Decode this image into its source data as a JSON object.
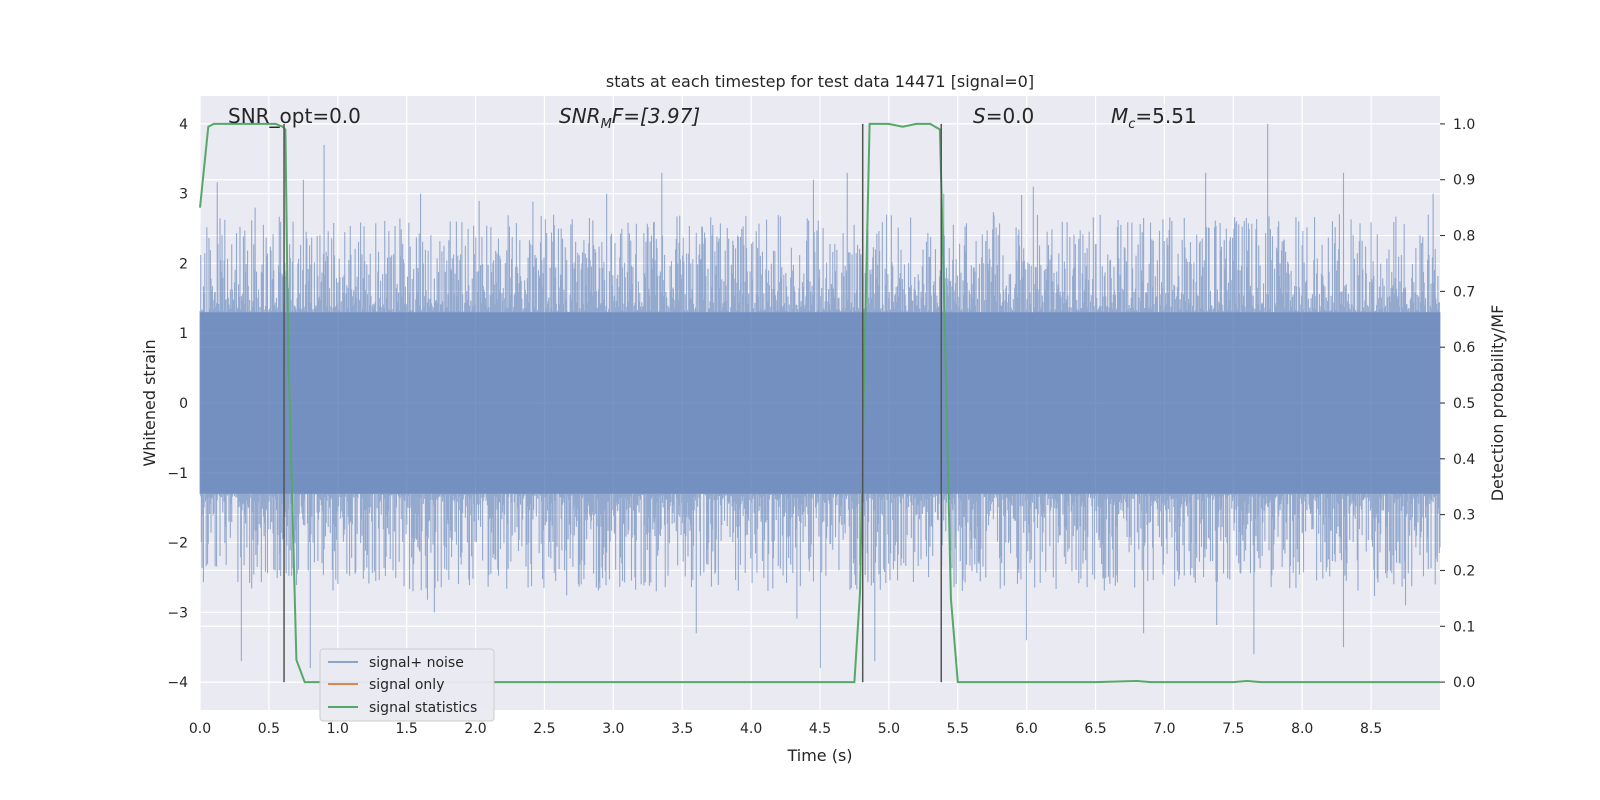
{
  "chart_data": {
    "type": "line",
    "title": "stats at each timestep for test data 14471 [signal=0]",
    "xlabel": "Time (s)",
    "ylabel_left": "Whitened strain",
    "ylabel_right": "Detection probability/MF",
    "xlim": [
      0.0,
      9.0
    ],
    "ylim_left": [
      -4.4,
      4.4
    ],
    "ylim_right": [
      -0.05,
      1.05
    ],
    "xticks": [
      "0.0",
      "0.5",
      "1.0",
      "1.5",
      "2.0",
      "2.5",
      "3.0",
      "3.5",
      "4.0",
      "4.5",
      "5.0",
      "5.5",
      "6.0",
      "6.5",
      "7.0",
      "7.5",
      "8.0",
      "8.5"
    ],
    "yticks_left": [
      "−4",
      "−3",
      "−2",
      "−1",
      "0",
      "1",
      "2",
      "3",
      "4"
    ],
    "yticks_right": [
      "0.0",
      "0.1",
      "0.2",
      "0.3",
      "0.4",
      "0.5",
      "0.6",
      "0.7",
      "0.8",
      "0.9",
      "1.0"
    ],
    "grid": true,
    "legend_position": "bottom-left",
    "annotations": {
      "snr_opt": "SNR_opt=0.0",
      "snr_mf_symbol": "SNR",
      "snr_mf_sub": "M",
      "snr_mf_rest": "F=[3.97]",
      "s_symbol": "S",
      "s_rest": "=0.0",
      "mc_symbol": "M",
      "mc_sub": "c",
      "mc_rest": "=5.51"
    },
    "vertical_lines_x": [
      0.61,
      4.81,
      5.38
    ],
    "series": [
      {
        "name": "signal+ noise",
        "color": "#4c72b0",
        "style": "noise-band",
        "samples": 1800,
        "x_range": [
          0.0,
          9.0
        ],
        "amplitude_range": [
          -4.0,
          4.0
        ],
        "upper_peaks": [
          [
            0.4,
            2.8
          ],
          [
            0.9,
            3.7
          ],
          [
            0.75,
            3.2
          ],
          [
            1.6,
            3.0
          ],
          [
            2.95,
            3.0
          ],
          [
            3.35,
            3.3
          ],
          [
            4.45,
            3.2
          ],
          [
            4.7,
            3.3
          ],
          [
            5.4,
            3.0
          ],
          [
            6.05,
            3.1
          ],
          [
            7.3,
            3.3
          ],
          [
            7.75,
            4.0
          ],
          [
            8.3,
            3.3
          ],
          [
            8.95,
            3.0
          ]
        ],
        "lower_peaks": [
          [
            0.3,
            -3.7
          ],
          [
            0.8,
            -3.8
          ],
          [
            1.7,
            -3.0
          ],
          [
            3.6,
            -3.3
          ],
          [
            4.5,
            -3.8
          ],
          [
            4.9,
            -3.7
          ],
          [
            6.0,
            -3.4
          ],
          [
            6.85,
            -3.3
          ],
          [
            7.65,
            -3.6
          ],
          [
            8.3,
            -3.5
          ],
          [
            8.75,
            -2.9
          ]
        ]
      },
      {
        "name": "signal only",
        "color": "#dd8452",
        "x": [],
        "y": []
      },
      {
        "name": "signal statistics",
        "color": "#55a868",
        "axis": "right",
        "x": [
          0.0,
          0.06,
          0.1,
          0.2,
          0.3,
          0.4,
          0.5,
          0.55,
          0.6,
          0.62,
          0.64,
          0.7,
          0.76,
          1.0,
          2.0,
          3.0,
          4.0,
          4.75,
          4.79,
          4.82,
          4.86,
          4.9,
          5.0,
          5.1,
          5.2,
          5.3,
          5.37,
          5.4,
          5.45,
          5.5,
          6.0,
          6.5,
          6.8,
          6.9,
          7.5,
          7.6,
          7.7,
          8.0,
          9.0
        ],
        "y": [
          0.85,
          0.995,
          1.0,
          1.0,
          1.0,
          1.0,
          1.0,
          1.0,
          0.995,
          0.99,
          0.6,
          0.04,
          0.0,
          0.0,
          0.0,
          0.0,
          0.0,
          0.0,
          0.16,
          0.55,
          1.0,
          1.0,
          1.0,
          0.995,
          1.0,
          1.0,
          0.99,
          0.7,
          0.15,
          0.0,
          0.0,
          0.0,
          0.002,
          0.0,
          0.0,
          0.002,
          0.0,
          0.0,
          0.0
        ]
      }
    ]
  }
}
